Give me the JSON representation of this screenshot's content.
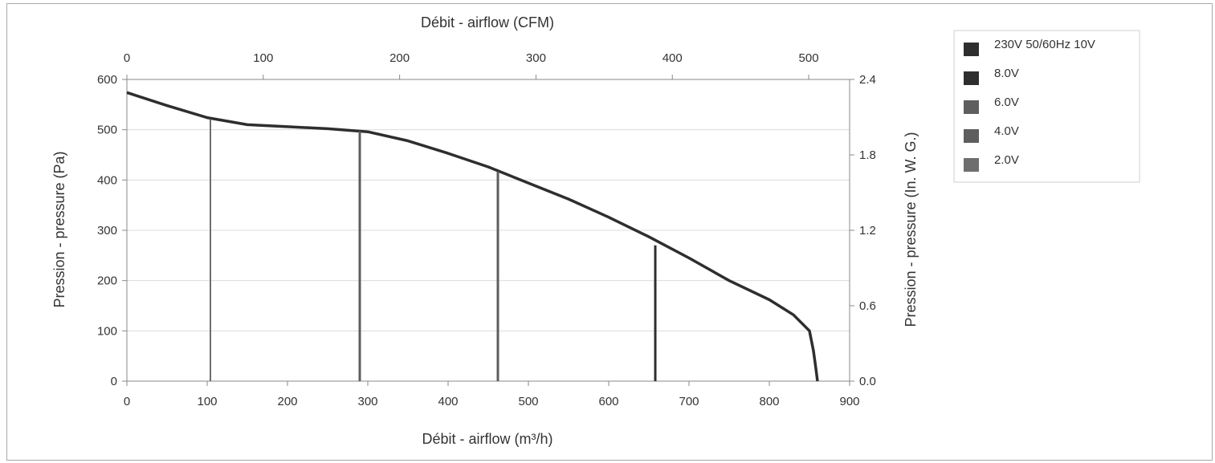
{
  "chart_data": {
    "type": "line",
    "xlabel_bottom": "Débit - airflow (m³/h)",
    "xlabel_top": "Débit - airflow (CFM)",
    "ylabel_left": "Pression - pressure (Pa)",
    "ylabel_right": "Pression - pressure (In. W. G.)",
    "xlim_bottom": [
      0,
      900
    ],
    "xlim_top": [
      0,
      530
    ],
    "ylim_left": [
      0,
      600
    ],
    "ylim_right": [
      0,
      2.4
    ],
    "xticks_bottom": [
      "0",
      "100",
      "200",
      "300",
      "400",
      "500",
      "600",
      "700",
      "800",
      "900"
    ],
    "xticks_top": [
      "0",
      "100",
      "200",
      "300",
      "400",
      "500"
    ],
    "yticks_left": [
      "0",
      "100",
      "200",
      "300",
      "400",
      "500",
      "600"
    ],
    "yticks_right": [
      "0.0",
      "0.6",
      "1.2",
      "1.8",
      "2.4"
    ],
    "grid": true,
    "legend_position": "top-right",
    "series": [
      {
        "name": "230V 50/60Hz 10V",
        "color": "#2e2e2e",
        "x": [
          0,
          50,
          100,
          150,
          200,
          250,
          300,
          350,
          400,
          450,
          500,
          550,
          600,
          650,
          700,
          750,
          800,
          830,
          850,
          855,
          858,
          860
        ],
        "y": [
          574,
          548,
          524,
          510,
          506,
          502,
          496,
          478,
          453,
          426,
          394,
          362,
          326,
          287,
          245,
          200,
          162,
          132,
          100,
          60,
          25,
          0
        ]
      },
      {
        "name": "8.0V",
        "color": "#2e2e2e",
        "x": [
          658,
          658
        ],
        "y": [
          0,
          270
        ]
      },
      {
        "name": "6.0V",
        "color": "#5e5e5e",
        "x": [
          462,
          462
        ],
        "y": [
          0,
          417
        ]
      },
      {
        "name": "4.0V",
        "color": "#5e5e5e",
        "x": [
          290,
          290
        ],
        "y": [
          0,
          497
        ]
      },
      {
        "name": "2.0V",
        "color": "#6e6e6e",
        "x": [
          104,
          104
        ],
        "y": [
          0,
          521
        ]
      }
    ]
  }
}
